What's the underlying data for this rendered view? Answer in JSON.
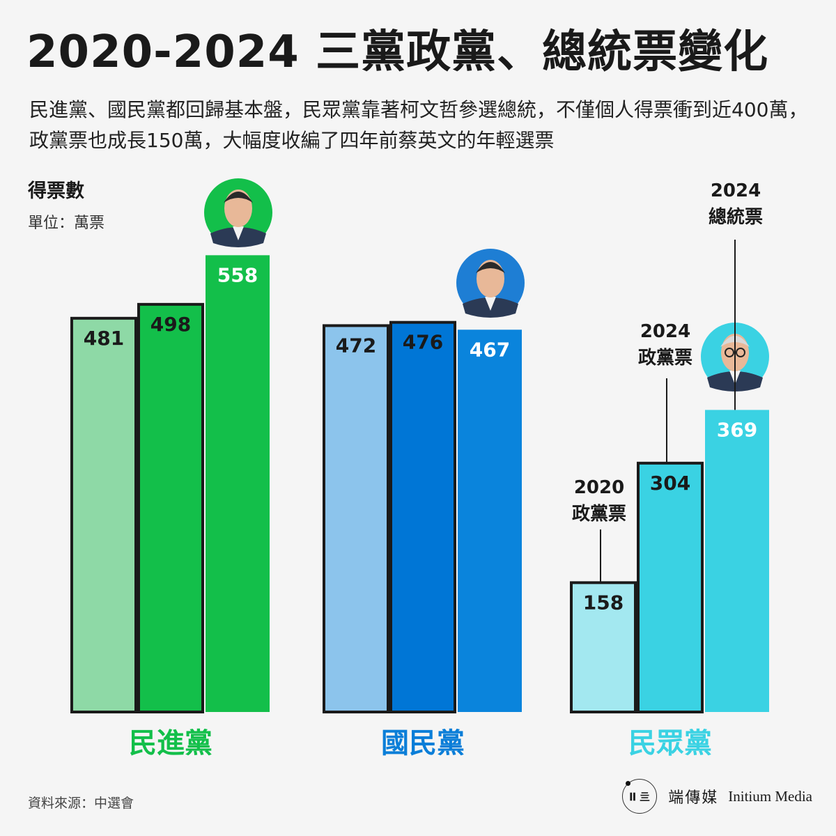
{
  "title": "2020-2024 三黨政黨、總統票變化",
  "subtitle": "民進黨、國民黨都回歸基本盤，民眾黨靠著柯文哲參選總統，不僅個人得票衝到近400萬，政黨票也成長150萬，大幅度收編了四年前蔡英文的年輕選票",
  "ylabel": "得票數",
  "unit": "單位：萬票",
  "source": "資料來源：中選會",
  "brand": {
    "logo_text": "𝐈𝐈 亖",
    "name": "端傳媒",
    "name_en": "Initium Media"
  },
  "annotations": [
    {
      "name": "annot-2020-party",
      "lines": [
        "2020",
        "政黨票"
      ]
    },
    {
      "name": "annot-2024-party",
      "lines": [
        "2024",
        "政黨票"
      ]
    },
    {
      "name": "annot-2024-president",
      "lines": [
        "2024",
        "總統票"
      ]
    }
  ],
  "chart_data": {
    "type": "bar",
    "title": "2020-2024 三黨政黨、總統票變化",
    "ylabel": "得票數（萬票）",
    "ylim": [
      0,
      600
    ],
    "categories": [
      "民進黨",
      "國民黨",
      "民眾黨"
    ],
    "series": [
      {
        "name": "2020 政黨票",
        "values": [
          481,
          472,
          158
        ]
      },
      {
        "name": "2024 政黨票",
        "values": [
          498,
          476,
          304
        ]
      },
      {
        "name": "2024 總統票",
        "values": [
          558,
          467,
          369
        ]
      }
    ],
    "party_colors": [
      [
        "#8ed9a6",
        "#13bf4a",
        "#13bf4a"
      ],
      [
        "#8cc4ec",
        "#0076d6",
        "#0a84dc"
      ],
      [
        "#a3e8f0",
        "#3ad2e3",
        "#3ad2e3"
      ]
    ],
    "label_colors": [
      "#13bf4a",
      "#0a7ed8",
      "#3ad2e3"
    ],
    "portrait_colors": [
      "#13bf4a",
      "#1e7ed4",
      "#3ad2e3"
    ]
  }
}
